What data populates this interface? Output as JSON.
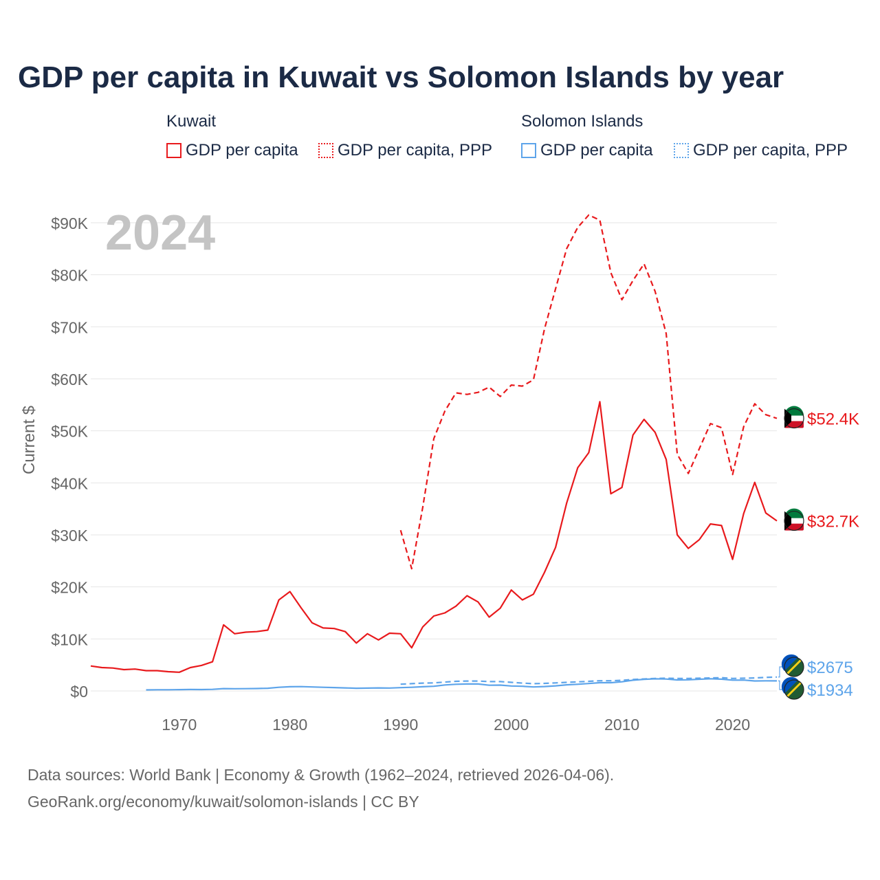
{
  "title": "GDP per capita in Kuwait vs Solomon Islands by year",
  "legend": {
    "groups": [
      {
        "country": "Kuwait",
        "gdp_label": "GDP per capita",
        "ppp_label": "GDP per capita, PPP",
        "color": "#e8191c"
      },
      {
        "country": "Solomon Islands",
        "gdp_label": "GDP per capita",
        "ppp_label": "GDP per capita, PPP",
        "color": "#5da4ea"
      }
    ]
  },
  "year_watermark": "2024",
  "source": {
    "line1": "Data sources: World Bank | Economy & Growth (1962–2024, retrieved 2026-04-06).",
    "line2": "GeoRank.org/economy/kuwait/solomon-islands | CC BY"
  },
  "chart_data": {
    "type": "line",
    "ylabel": "Current $",
    "xlabel": "",
    "xlim": [
      1962,
      2024
    ],
    "ylim": [
      0,
      90000
    ],
    "x_ticks": [
      1970,
      1980,
      1990,
      2000,
      2010,
      2020
    ],
    "x_tick_labels": [
      "1970",
      "1980",
      "1990",
      "2000",
      "2010",
      "2020"
    ],
    "y_ticks": [
      0,
      10000,
      20000,
      30000,
      40000,
      50000,
      60000,
      70000,
      80000,
      90000
    ],
    "y_tick_labels": [
      "$0",
      "$10K",
      "$20K",
      "$30K",
      "$40K",
      "$50K",
      "$60K",
      "$70K",
      "$80K",
      "$90K"
    ],
    "grid": true,
    "series": [
      {
        "name": "Kuwait GDP per capita",
        "style": "solid",
        "color": "#e8191c",
        "end_label": "$32.7K",
        "points": [
          [
            1962,
            4800
          ],
          [
            1963,
            4500
          ],
          [
            1964,
            4400
          ],
          [
            1965,
            4100
          ],
          [
            1966,
            4200
          ],
          [
            1967,
            3900
          ],
          [
            1968,
            3900
          ],
          [
            1969,
            3700
          ],
          [
            1970,
            3600
          ],
          [
            1971,
            4500
          ],
          [
            1972,
            4900
          ],
          [
            1973,
            5600
          ],
          [
            1974,
            12700
          ],
          [
            1975,
            11000
          ],
          [
            1976,
            11300
          ],
          [
            1977,
            11400
          ],
          [
            1978,
            11700
          ],
          [
            1979,
            17500
          ],
          [
            1980,
            19100
          ],
          [
            1981,
            16000
          ],
          [
            1982,
            13100
          ],
          [
            1983,
            12100
          ],
          [
            1984,
            12000
          ],
          [
            1985,
            11400
          ],
          [
            1986,
            9200
          ],
          [
            1987,
            11000
          ],
          [
            1988,
            9800
          ],
          [
            1989,
            11100
          ],
          [
            1990,
            11000
          ],
          [
            1991,
            8300
          ],
          [
            1992,
            12300
          ],
          [
            1993,
            14400
          ],
          [
            1994,
            15000
          ],
          [
            1995,
            16300
          ],
          [
            1996,
            18300
          ],
          [
            1997,
            17100
          ],
          [
            1998,
            14200
          ],
          [
            1999,
            15900
          ],
          [
            2000,
            19400
          ],
          [
            2001,
            17500
          ],
          [
            2002,
            18600
          ],
          [
            2003,
            22800
          ],
          [
            2004,
            27600
          ],
          [
            2005,
            36100
          ],
          [
            2006,
            42900
          ],
          [
            2007,
            45800
          ],
          [
            2008,
            55600
          ],
          [
            2009,
            37900
          ],
          [
            2010,
            39100
          ],
          [
            2011,
            49200
          ],
          [
            2012,
            52200
          ],
          [
            2013,
            49700
          ],
          [
            2014,
            44500
          ],
          [
            2015,
            30000
          ],
          [
            2016,
            27400
          ],
          [
            2017,
            29100
          ],
          [
            2018,
            32100
          ],
          [
            2019,
            31800
          ],
          [
            2020,
            25300
          ],
          [
            2021,
            34100
          ],
          [
            2022,
            40100
          ],
          [
            2023,
            34200
          ],
          [
            2024,
            32700
          ]
        ]
      },
      {
        "name": "Kuwait GDP per capita, PPP",
        "style": "dashed",
        "color": "#e8191c",
        "end_label": "$52.4K",
        "points": [
          [
            1990,
            30900
          ],
          [
            1991,
            23500
          ],
          [
            1992,
            35300
          ],
          [
            1993,
            48500
          ],
          [
            1994,
            53800
          ],
          [
            1995,
            57300
          ],
          [
            1996,
            57000
          ],
          [
            1997,
            57400
          ],
          [
            1998,
            58400
          ],
          [
            1999,
            56600
          ],
          [
            2000,
            58800
          ],
          [
            2001,
            58600
          ],
          [
            2002,
            59800
          ],
          [
            2003,
            69600
          ],
          [
            2004,
            77300
          ],
          [
            2005,
            85000
          ],
          [
            2006,
            89100
          ],
          [
            2007,
            91500
          ],
          [
            2008,
            90500
          ],
          [
            2009,
            80400
          ],
          [
            2010,
            75200
          ],
          [
            2011,
            78900
          ],
          [
            2012,
            82100
          ],
          [
            2013,
            76800
          ],
          [
            2014,
            68700
          ],
          [
            2015,
            45500
          ],
          [
            2016,
            41800
          ],
          [
            2017,
            46600
          ],
          [
            2018,
            51400
          ],
          [
            2019,
            50600
          ],
          [
            2020,
            41600
          ],
          [
            2021,
            50800
          ],
          [
            2022,
            55200
          ],
          [
            2023,
            53100
          ],
          [
            2024,
            52400
          ]
        ]
      },
      {
        "name": "Solomon Islands GDP per capita",
        "style": "solid",
        "color": "#5da4ea",
        "end_label": "$1934",
        "points": [
          [
            1967,
            200
          ],
          [
            1968,
            220
          ],
          [
            1969,
            230
          ],
          [
            1970,
            250
          ],
          [
            1971,
            280
          ],
          [
            1972,
            260
          ],
          [
            1973,
            300
          ],
          [
            1974,
            450
          ],
          [
            1975,
            420
          ],
          [
            1976,
            430
          ],
          [
            1977,
            460
          ],
          [
            1978,
            520
          ],
          [
            1979,
            700
          ],
          [
            1980,
            810
          ],
          [
            1981,
            830
          ],
          [
            1982,
            770
          ],
          [
            1983,
            700
          ],
          [
            1984,
            650
          ],
          [
            1985,
            580
          ],
          [
            1986,
            510
          ],
          [
            1987,
            540
          ],
          [
            1988,
            580
          ],
          [
            1989,
            560
          ],
          [
            1990,
            640
          ],
          [
            1991,
            700
          ],
          [
            1992,
            800
          ],
          [
            1993,
            900
          ],
          [
            1994,
            1150
          ],
          [
            1995,
            1280
          ],
          [
            1996,
            1340
          ],
          [
            1997,
            1330
          ],
          [
            1998,
            1100
          ],
          [
            1999,
            1120
          ],
          [
            2000,
            950
          ],
          [
            2001,
            900
          ],
          [
            2002,
            760
          ],
          [
            2003,
            850
          ],
          [
            2004,
            980
          ],
          [
            2005,
            1170
          ],
          [
            2006,
            1280
          ],
          [
            2007,
            1430
          ],
          [
            2008,
            1580
          ],
          [
            2009,
            1580
          ],
          [
            2010,
            1760
          ],
          [
            2011,
            2060
          ],
          [
            2012,
            2240
          ],
          [
            2013,
            2320
          ],
          [
            2014,
            2290
          ],
          [
            2015,
            2120
          ],
          [
            2016,
            2140
          ],
          [
            2017,
            2250
          ],
          [
            2018,
            2340
          ],
          [
            2019,
            2260
          ],
          [
            2020,
            2080
          ],
          [
            2021,
            2090
          ],
          [
            2022,
            1920
          ],
          [
            2023,
            1940
          ],
          [
            2024,
            1934
          ]
        ]
      },
      {
        "name": "Solomon Islands GDP per capita, PPP",
        "style": "dashed",
        "color": "#5da4ea",
        "end_label": "$2675",
        "points": [
          [
            1990,
            1300
          ],
          [
            1991,
            1400
          ],
          [
            1992,
            1500
          ],
          [
            1993,
            1550
          ],
          [
            1994,
            1700
          ],
          [
            1995,
            1850
          ],
          [
            1996,
            1900
          ],
          [
            1997,
            1900
          ],
          [
            1998,
            1800
          ],
          [
            1999,
            1800
          ],
          [
            2000,
            1650
          ],
          [
            2001,
            1500
          ],
          [
            2002,
            1400
          ],
          [
            2003,
            1450
          ],
          [
            2004,
            1550
          ],
          [
            2005,
            1650
          ],
          [
            2006,
            1750
          ],
          [
            2007,
            1850
          ],
          [
            2008,
            1950
          ],
          [
            2009,
            1950
          ],
          [
            2010,
            2050
          ],
          [
            2011,
            2200
          ],
          [
            2012,
            2300
          ],
          [
            2013,
            2400
          ],
          [
            2014,
            2450
          ],
          [
            2015,
            2400
          ],
          [
            2016,
            2400
          ],
          [
            2017,
            2450
          ],
          [
            2018,
            2500
          ],
          [
            2019,
            2550
          ],
          [
            2020,
            2400
          ],
          [
            2021,
            2450
          ],
          [
            2022,
            2500
          ],
          [
            2023,
            2600
          ],
          [
            2024,
            2675
          ]
        ]
      }
    ]
  }
}
